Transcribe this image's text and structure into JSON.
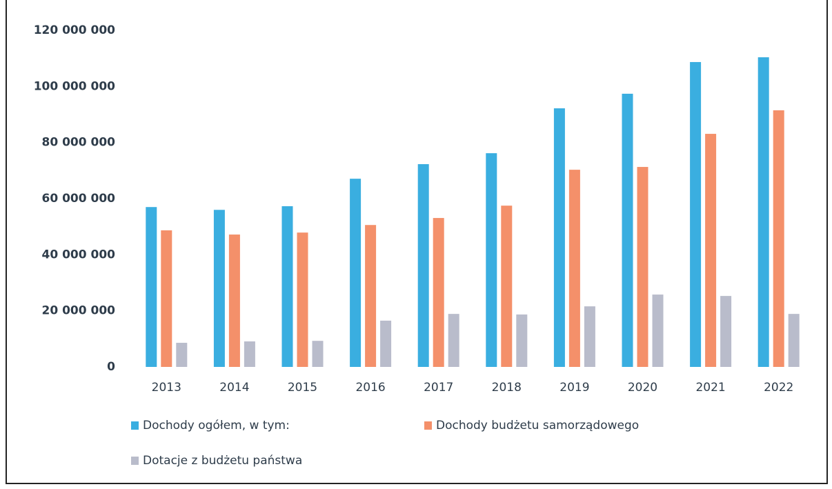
{
  "chart_data": {
    "type": "bar",
    "categories": [
      "2013",
      "2014",
      "2015",
      "2016",
      "2017",
      "2018",
      "2019",
      "2020",
      "2021",
      "2022"
    ],
    "series": [
      {
        "name": "Dochody ogółem, w tym:",
        "color": "#3aaee0",
        "values": [
          57000000,
          56000000,
          57300000,
          67100000,
          72300000,
          76200000,
          92200000,
          97400000,
          108700000,
          110400000
        ]
      },
      {
        "name": "Dochody budżetu samorządowego",
        "color": "#f4906a",
        "values": [
          48700000,
          47200000,
          47900000,
          50600000,
          53100000,
          57500000,
          70300000,
          71300000,
          83100000,
          91500000
        ]
      },
      {
        "name": "Dotacje z budżetu państwa",
        "color": "#b9bccb",
        "values": [
          8600000,
          9100000,
          9300000,
          16500000,
          18900000,
          18700000,
          21600000,
          25800000,
          25300000,
          18900000
        ]
      }
    ],
    "ylim": [
      0,
      120000000
    ],
    "yticks": [
      0,
      {
        "value": 20000000,
        "label": "20 000 000"
      },
      {
        "value": 40000000,
        "label": "40 000 000"
      },
      {
        "value": 60000000,
        "label": "60 000 000"
      },
      {
        "value": 80000000,
        "label": "80 000 000"
      },
      {
        "value": 100000000,
        "label": "100 000 000"
      },
      {
        "value": 120000000,
        "label": "120 000 000"
      }
    ],
    "grid": false
  }
}
